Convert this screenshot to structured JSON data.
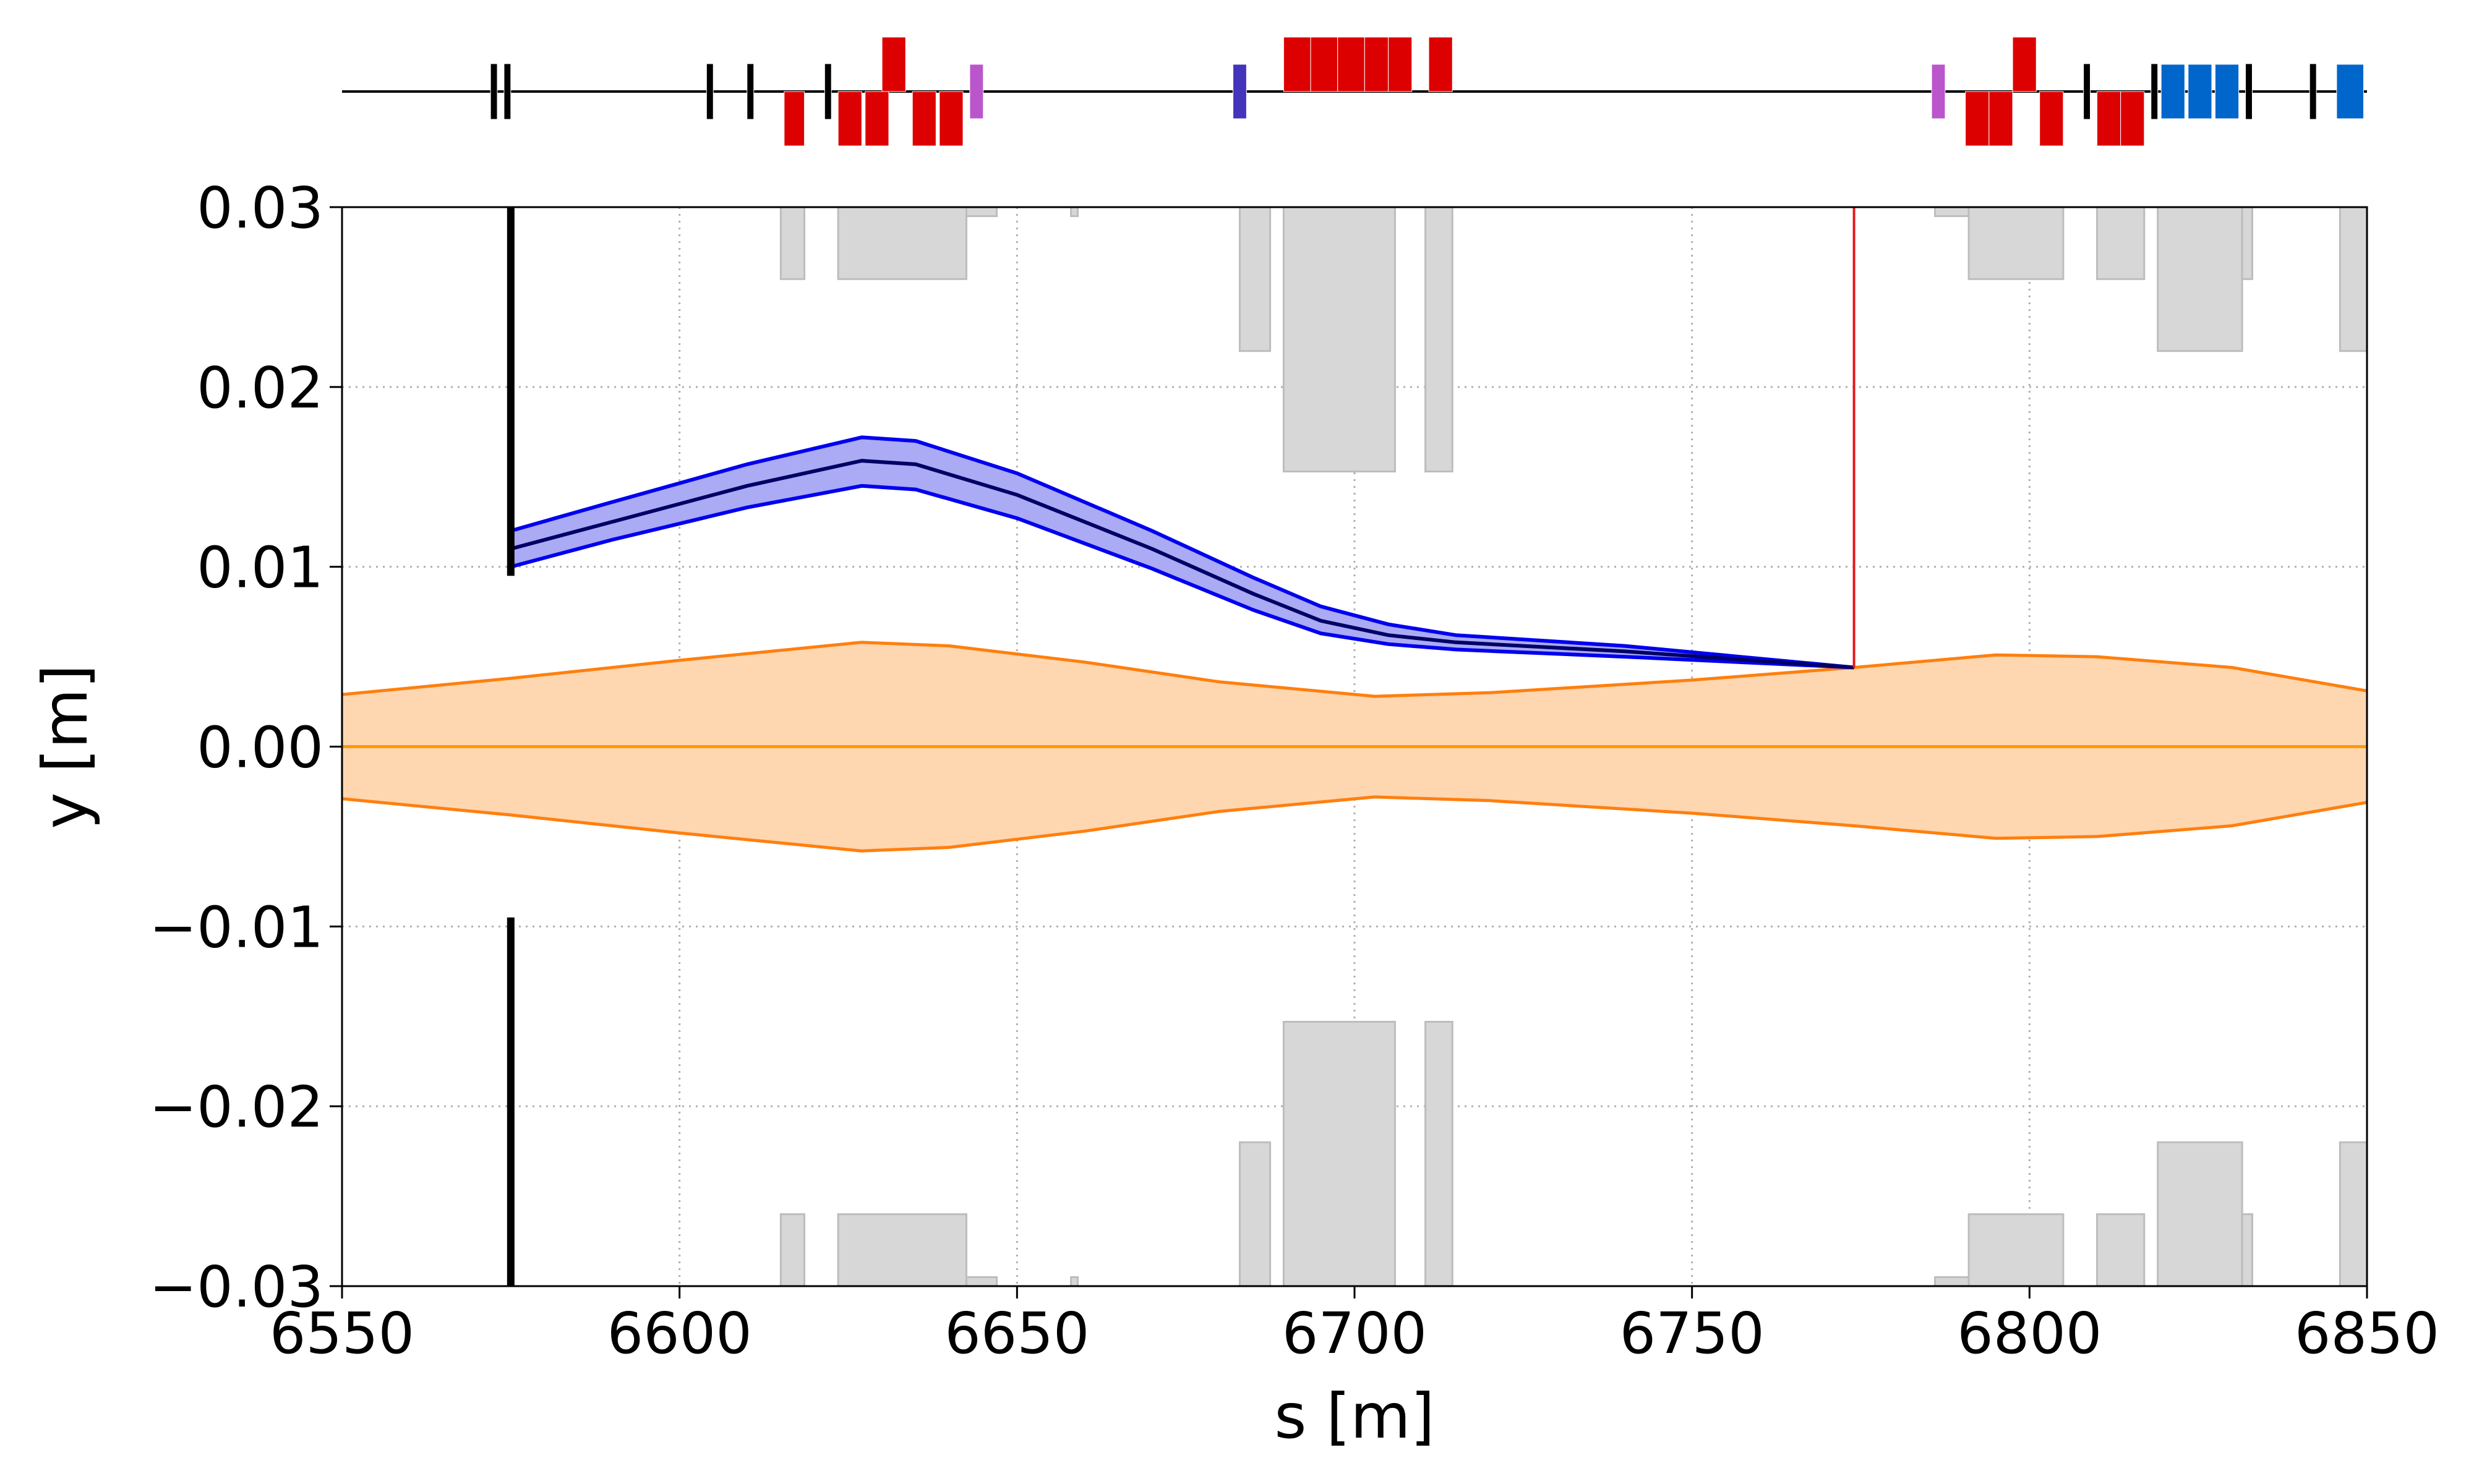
{
  "chart_data": {
    "type": "line",
    "xlabel": "s [m]",
    "ylabel": "y [m]",
    "xlim": [
      6550,
      6850
    ],
    "ylim": [
      -0.03,
      0.03
    ],
    "x_ticks": [
      "6550",
      "6600",
      "6650",
      "6700",
      "6750",
      "6800",
      "6850"
    ],
    "y_ticks": [
      "−0.03",
      "−0.02",
      "−0.01",
      "0.00",
      "0.01",
      "0.02",
      "0.03"
    ],
    "grid": true,
    "colors": {
      "envelope_line": "#ff7f0e",
      "envelope_fill": "#fed6b0",
      "orbit_line": "#ff9900",
      "trajectory_edge": "#0000ee",
      "trajectory_fill": "#aaaaf5",
      "trajectory_center": "#000066",
      "aperture_fill": "#d7d7d7",
      "aperture_edge": "#bdbdbd",
      "marker_line": "#e41a1c",
      "collimator": "#000000",
      "dipole": "#dd0000",
      "quadrupole": "#0066cc",
      "sextupole": "#bb55cc",
      "kicker": "#4433bb"
    },
    "series": [
      {
        "role": "beam-envelope",
        "s": [
          6550,
          6575,
          6600,
          6627,
          6640,
          6660,
          6680,
          6703,
          6720,
          6750,
          6774,
          6795,
          6810,
          6830,
          6850
        ],
        "upper": [
          0.0029,
          0.0038,
          0.0048,
          0.0058,
          0.0056,
          0.0047,
          0.0036,
          0.0028,
          0.003,
          0.0037,
          0.0044,
          0.0051,
          0.005,
          0.0044,
          0.0031
        ]
      },
      {
        "role": "closed-orbit",
        "s": [
          6550,
          6850
        ],
        "y": [
          0.0,
          0.0
        ]
      },
      {
        "role": "extracted-trajectory",
        "s": [
          6575,
          6590,
          6610,
          6627,
          6635,
          6650,
          6670,
          6685,
          6695,
          6705,
          6715,
          6740,
          6774
        ],
        "center": [
          0.011,
          0.0125,
          0.0145,
          0.0159,
          0.0157,
          0.014,
          0.011,
          0.0085,
          0.007,
          0.0062,
          0.0058,
          0.0053,
          0.0044
        ],
        "upper": [
          0.012,
          0.0136,
          0.0157,
          0.0172,
          0.017,
          0.0152,
          0.012,
          0.0094,
          0.0078,
          0.0068,
          0.0062,
          0.0056,
          0.0044
        ],
        "lower": [
          0.01,
          0.0115,
          0.0133,
          0.0145,
          0.0143,
          0.0127,
          0.0099,
          0.0076,
          0.0063,
          0.0057,
          0.0054,
          0.005,
          0.0044
        ]
      }
    ],
    "apertures": [
      {
        "s0": 6615.0,
        "s1": 6618.5,
        "half_gap": 0.026
      },
      {
        "s0": 6623.5,
        "s1": 6642.5,
        "half_gap": 0.026
      },
      {
        "s0": 6642.5,
        "s1": 6647.0,
        "half_gap": 0.0295
      },
      {
        "s0": 6658.0,
        "s1": 6659.0,
        "half_gap": 0.0295
      },
      {
        "s0": 6683.0,
        "s1": 6687.5,
        "half_gap": 0.022
      },
      {
        "s0": 6689.5,
        "s1": 6706.0,
        "half_gap": 0.0153
      },
      {
        "s0": 6710.5,
        "s1": 6714.5,
        "half_gap": 0.0153
      },
      {
        "s0": 6786.0,
        "s1": 6791.0,
        "half_gap": 0.0295
      },
      {
        "s0": 6791.0,
        "s1": 6805.0,
        "half_gap": 0.026
      },
      {
        "s0": 6810.0,
        "s1": 6817.0,
        "half_gap": 0.026
      },
      {
        "s0": 6819.0,
        "s1": 6831.5,
        "half_gap": 0.022
      },
      {
        "s0": 6831.5,
        "s1": 6833.0,
        "half_gap": 0.026
      },
      {
        "s0": 6846.0,
        "s1": 6850.0,
        "half_gap": 0.022
      }
    ],
    "collimator": {
      "s": 6575,
      "upper_from": 0.0095,
      "lower_from": -0.0095
    },
    "marker_line": {
      "s": 6774,
      "from": 0.0044,
      "to": 0.03
    },
    "lattice": [
      {
        "type": "collimator",
        "s0": 6572.0,
        "s1": 6573.0,
        "side": "both"
      },
      {
        "type": "collimator",
        "s0": 6574.0,
        "s1": 6575.0,
        "side": "both"
      },
      {
        "type": "collimator",
        "s0": 6604.0,
        "s1": 6605.0,
        "side": "both"
      },
      {
        "type": "collimator",
        "s0": 6610.0,
        "s1": 6611.0,
        "side": "both"
      },
      {
        "type": "collimator",
        "s0": 6621.5,
        "s1": 6622.5,
        "side": "both"
      },
      {
        "type": "dipole",
        "s0": 6615.5,
        "s1": 6618.5,
        "side": "down"
      },
      {
        "type": "dipole",
        "s0": 6623.5,
        "s1": 6627.0,
        "side": "down"
      },
      {
        "type": "dipole",
        "s0": 6627.5,
        "s1": 6631.0,
        "side": "down"
      },
      {
        "type": "dipole",
        "s0": 6630.0,
        "s1": 6633.5,
        "side": "up"
      },
      {
        "type": "dipole",
        "s0": 6634.5,
        "s1": 6638.0,
        "side": "down"
      },
      {
        "type": "dipole",
        "s0": 6638.5,
        "s1": 6642.0,
        "side": "down"
      },
      {
        "type": "sextupole",
        "s0": 6643.0,
        "s1": 6645.0,
        "side": "both"
      },
      {
        "type": "kicker",
        "s0": 6682.0,
        "s1": 6684.0,
        "side": "both"
      },
      {
        "type": "dipole",
        "s0": 6689.5,
        "s1": 6693.5,
        "side": "up"
      },
      {
        "type": "dipole",
        "s0": 6693.5,
        "s1": 6697.5,
        "side": "up"
      },
      {
        "type": "dipole",
        "s0": 6697.5,
        "s1": 6701.5,
        "side": "up"
      },
      {
        "type": "dipole",
        "s0": 6701.5,
        "s1": 6705.0,
        "side": "up"
      },
      {
        "type": "dipole",
        "s0": 6705.0,
        "s1": 6708.5,
        "side": "up"
      },
      {
        "type": "dipole",
        "s0": 6711.0,
        "s1": 6714.5,
        "side": "up"
      },
      {
        "type": "sextupole",
        "s0": 6785.5,
        "s1": 6787.5,
        "side": "both"
      },
      {
        "type": "dipole",
        "s0": 6790.5,
        "s1": 6794.0,
        "side": "down"
      },
      {
        "type": "dipole",
        "s0": 6794.0,
        "s1": 6797.5,
        "side": "down"
      },
      {
        "type": "dipole",
        "s0": 6797.5,
        "s1": 6801.0,
        "side": "up"
      },
      {
        "type": "dipole",
        "s0": 6801.5,
        "s1": 6805.0,
        "side": "down"
      },
      {
        "type": "collimator",
        "s0": 6808.0,
        "s1": 6809.0,
        "side": "both"
      },
      {
        "type": "dipole",
        "s0": 6810.0,
        "s1": 6813.5,
        "side": "down"
      },
      {
        "type": "dipole",
        "s0": 6813.5,
        "s1": 6817.0,
        "side": "down"
      },
      {
        "type": "collimator",
        "s0": 6818.0,
        "s1": 6819.0,
        "side": "both"
      },
      {
        "type": "quadrupole",
        "s0": 6819.5,
        "s1": 6823.0,
        "side": "both"
      },
      {
        "type": "quadrupole",
        "s0": 6823.5,
        "s1": 6827.0,
        "side": "both"
      },
      {
        "type": "quadrupole",
        "s0": 6827.5,
        "s1": 6831.0,
        "side": "both"
      },
      {
        "type": "collimator",
        "s0": 6832.0,
        "s1": 6833.0,
        "side": "both"
      },
      {
        "type": "collimator",
        "s0": 6841.5,
        "s1": 6842.5,
        "side": "both"
      },
      {
        "type": "quadrupole",
        "s0": 6845.5,
        "s1": 6849.5,
        "side": "both"
      }
    ]
  }
}
